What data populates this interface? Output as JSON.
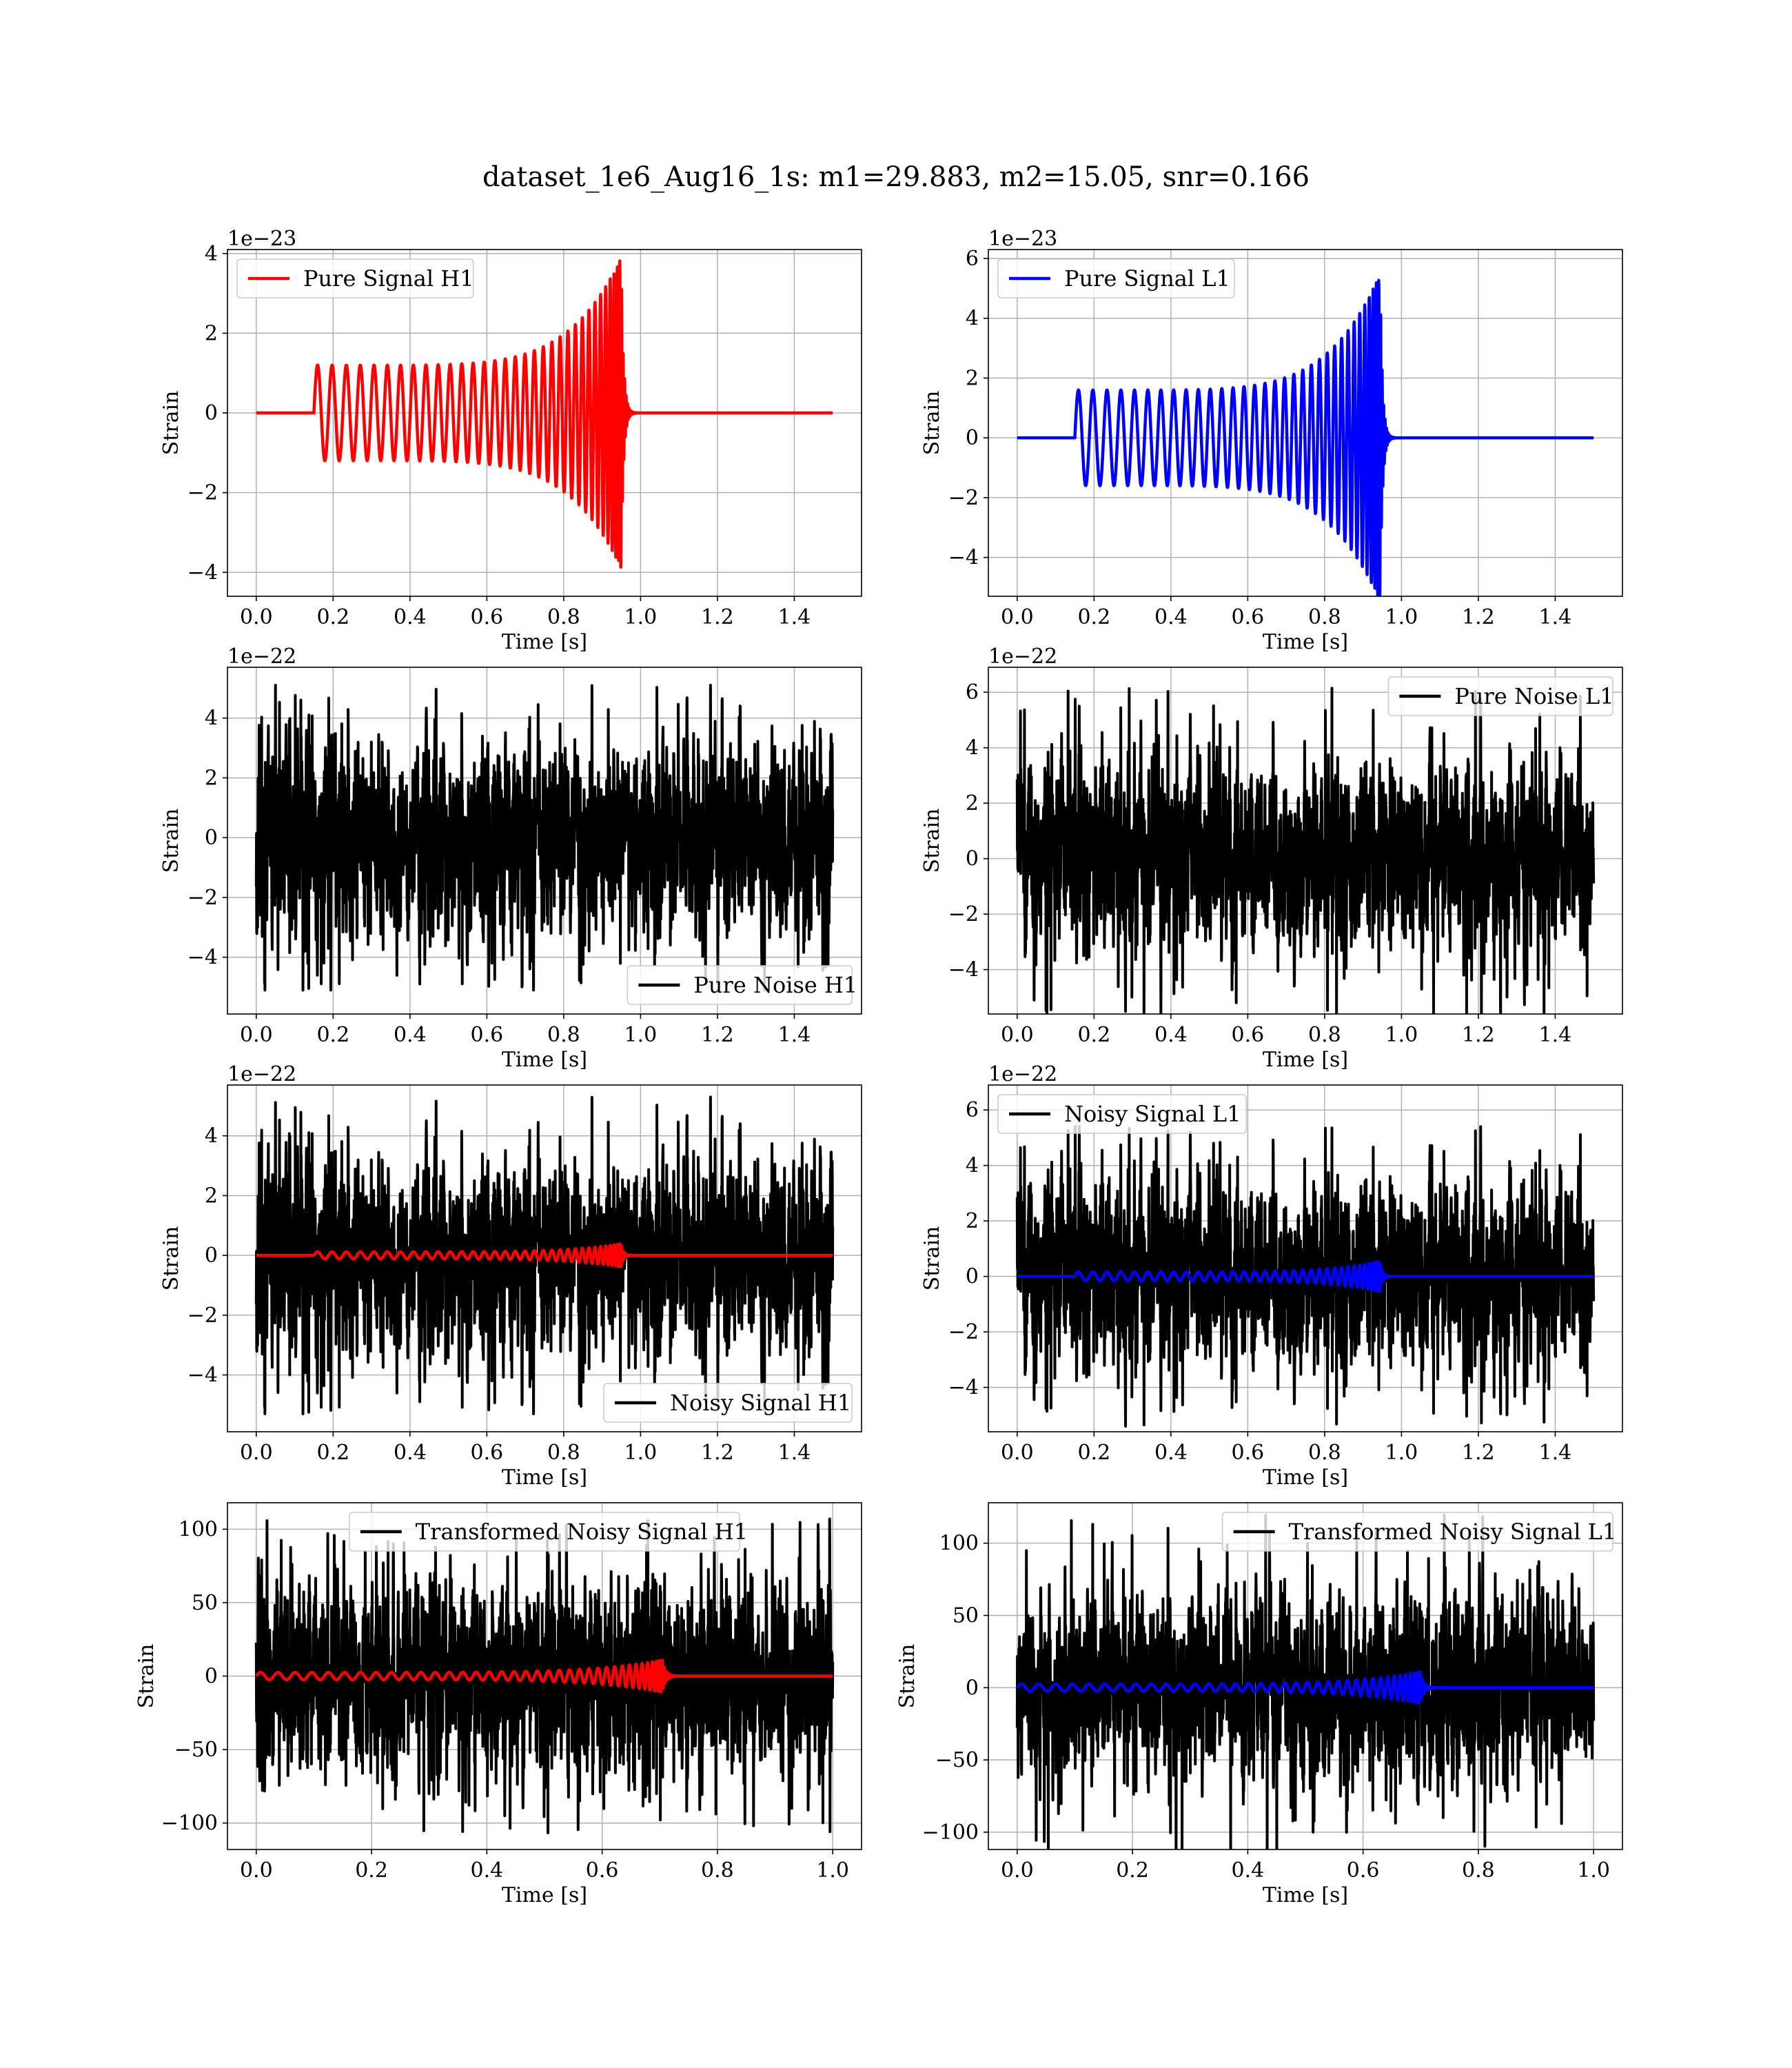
{
  "figure": {
    "suptitle": "dataset_1e6_Aug16_1s: m1=29.883, m2=15.05, snr=0.166"
  },
  "colors": {
    "H1_signal": "#ff0000",
    "L1_signal": "#0000ff",
    "noise": "#000000",
    "grid": "#b0b0b0"
  },
  "chart_data": [
    {
      "id": "pure_signal_h1",
      "type": "line",
      "xlabel": "Time [s]",
      "ylabel": "Strain",
      "offset_text": "1e−23",
      "xlim": [
        -0.075,
        1.575
      ],
      "ylim": [
        -4.6,
        4.1
      ],
      "xticks": [
        0.0,
        0.2,
        0.4,
        0.6,
        0.8,
        1.0,
        1.2,
        1.4
      ],
      "xtick_labels": [
        "0.0",
        "0.2",
        "0.4",
        "0.6",
        "0.8",
        "1.0",
        "1.2",
        "1.4"
      ],
      "yticks": [
        -4,
        -2,
        0,
        2,
        4
      ],
      "ytick_labels": [
        "−4",
        "−2",
        "0",
        "2",
        "4"
      ],
      "grid": true,
      "legend_position": "upper left",
      "legend": [
        "Pure Signal H1"
      ],
      "series": [
        {
          "name": "Pure Signal H1",
          "color": "#ff0000",
          "kind": "chirp",
          "t_start": 0.15,
          "t_merge": 0.95,
          "t_end": 1.5,
          "amp_start": 1.2,
          "amp_peak": 3.9,
          "cycles": 38
        }
      ]
    },
    {
      "id": "pure_signal_l1",
      "type": "line",
      "xlabel": "Time [s]",
      "ylabel": "Strain",
      "offset_text": "1e−23",
      "xlim": [
        -0.075,
        1.575
      ],
      "ylim": [
        -5.3,
        6.3
      ],
      "xticks": [
        0.0,
        0.2,
        0.4,
        0.6,
        0.8,
        1.0,
        1.2,
        1.4
      ],
      "xtick_labels": [
        "0.0",
        "0.2",
        "0.4",
        "0.6",
        "0.8",
        "1.0",
        "1.2",
        "1.4"
      ],
      "yticks": [
        -4,
        -2,
        0,
        2,
        4,
        6
      ],
      "ytick_labels": [
        "−4",
        "−2",
        "0",
        "2",
        "4",
        "6"
      ],
      "grid": true,
      "legend_position": "upper left",
      "legend": [
        "Pure Signal L1"
      ],
      "series": [
        {
          "name": "Pure Signal L1",
          "color": "#0000ff",
          "kind": "chirp",
          "t_start": 0.15,
          "t_merge": 0.945,
          "t_end": 1.5,
          "amp_start": 1.6,
          "amp_peak": 5.5,
          "cycles": 38
        }
      ]
    },
    {
      "id": "pure_noise_h1",
      "type": "line",
      "xlabel": "Time [s]",
      "ylabel": "Strain",
      "offset_text": "1e−22",
      "xlim": [
        -0.075,
        1.575
      ],
      "ylim": [
        -5.9,
        5.7
      ],
      "xticks": [
        0.0,
        0.2,
        0.4,
        0.6,
        0.8,
        1.0,
        1.2,
        1.4
      ],
      "xtick_labels": [
        "0.0",
        "0.2",
        "0.4",
        "0.6",
        "0.8",
        "1.0",
        "1.2",
        "1.4"
      ],
      "yticks": [
        -4,
        -2,
        0,
        2,
        4
      ],
      "ytick_labels": [
        "−4",
        "−2",
        "0",
        "2",
        "4"
      ],
      "grid": true,
      "legend_position": "lower right",
      "legend": [
        "Pure Noise H1"
      ],
      "series": [
        {
          "name": "Pure Noise H1",
          "color": "#000000",
          "kind": "noise",
          "t_start": 0.0,
          "t_end": 1.5,
          "amp": 1.6,
          "max_abs": 5.1,
          "seed": 11
        }
      ]
    },
    {
      "id": "pure_noise_l1",
      "type": "line",
      "xlabel": "Time [s]",
      "ylabel": "Strain",
      "offset_text": "1e−22",
      "xlim": [
        -0.075,
        1.575
      ],
      "ylim": [
        -5.6,
        6.9
      ],
      "xticks": [
        0.0,
        0.2,
        0.4,
        0.6,
        0.8,
        1.0,
        1.2,
        1.4
      ],
      "xtick_labels": [
        "0.0",
        "0.2",
        "0.4",
        "0.6",
        "0.8",
        "1.0",
        "1.2",
        "1.4"
      ],
      "yticks": [
        -4,
        -2,
        0,
        2,
        4,
        6
      ],
      "ytick_labels": [
        "−4",
        "−2",
        "0",
        "2",
        "4",
        "6"
      ],
      "grid": true,
      "legend_position": "upper right",
      "legend": [
        "Pure Noise L1"
      ],
      "series": [
        {
          "name": "Pure Noise L1",
          "color": "#000000",
          "kind": "noise",
          "t_start": 0.0,
          "t_end": 1.5,
          "amp": 1.6,
          "max_abs": 6.2,
          "seed": 23
        }
      ]
    },
    {
      "id": "noisy_signal_h1",
      "type": "line",
      "xlabel": "Time [s]",
      "ylabel": "Strain",
      "offset_text": "1e−22",
      "xlim": [
        -0.075,
        1.575
      ],
      "ylim": [
        -5.9,
        5.7
      ],
      "xticks": [
        0.0,
        0.2,
        0.4,
        0.6,
        0.8,
        1.0,
        1.2,
        1.4
      ],
      "xtick_labels": [
        "0.0",
        "0.2",
        "0.4",
        "0.6",
        "0.8",
        "1.0",
        "1.2",
        "1.4"
      ],
      "yticks": [
        -4,
        -2,
        0,
        2,
        4
      ],
      "ytick_labels": [
        "−4",
        "−2",
        "0",
        "2",
        "4"
      ],
      "grid": true,
      "legend_position": "lower right",
      "legend": [
        "Noisy Signal H1"
      ],
      "series": [
        {
          "name": "Noisy Signal H1",
          "color": "#000000",
          "kind": "noise",
          "t_start": 0.0,
          "t_end": 1.5,
          "amp": 1.6,
          "max_abs": 5.3,
          "seed": 11
        },
        {
          "color": "#ff0000",
          "kind": "chirp",
          "t_start": 0.15,
          "t_merge": 0.95,
          "t_end": 1.5,
          "amp_start": 0.12,
          "amp_peak": 0.39,
          "cycles": 38
        }
      ]
    },
    {
      "id": "noisy_signal_l1",
      "type": "line",
      "xlabel": "Time [s]",
      "ylabel": "Strain",
      "offset_text": "1e−22",
      "xlim": [
        -0.075,
        1.575
      ],
      "ylim": [
        -5.6,
        6.9
      ],
      "xticks": [
        0.0,
        0.2,
        0.4,
        0.6,
        0.8,
        1.0,
        1.2,
        1.4
      ],
      "xtick_labels": [
        "0.0",
        "0.2",
        "0.4",
        "0.6",
        "0.8",
        "1.0",
        "1.2",
        "1.4"
      ],
      "yticks": [
        -4,
        -2,
        0,
        2,
        4,
        6
      ],
      "ytick_labels": [
        "−4",
        "−2",
        "0",
        "2",
        "4",
        "6"
      ],
      "grid": true,
      "legend_position": "upper left",
      "legend": [
        "Noisy Signal L1"
      ],
      "series": [
        {
          "name": "Noisy Signal L1",
          "color": "#000000",
          "kind": "noise",
          "t_start": 0.0,
          "t_end": 1.5,
          "amp": 1.6,
          "max_abs": 5.4,
          "seed": 23
        },
        {
          "color": "#0000ff",
          "kind": "chirp",
          "t_start": 0.15,
          "t_merge": 0.945,
          "t_end": 1.5,
          "amp_start": 0.16,
          "amp_peak": 0.55,
          "cycles": 38
        }
      ]
    },
    {
      "id": "transformed_noisy_signal_h1",
      "type": "line",
      "xlabel": "Time [s]",
      "ylabel": "Strain",
      "offset_text": "",
      "xlim": [
        -0.05,
        1.05
      ],
      "ylim": [
        -118,
        118
      ],
      "xticks": [
        0.0,
        0.2,
        0.4,
        0.6,
        0.8,
        1.0
      ],
      "xtick_labels": [
        "0.0",
        "0.2",
        "0.4",
        "0.6",
        "0.8",
        "1.0"
      ],
      "yticks": [
        -100,
        -50,
        0,
        50,
        100
      ],
      "ytick_labels": [
        "−100",
        "−50",
        "0",
        "50",
        "100"
      ],
      "grid": true,
      "legend_position": "upper center",
      "legend": [
        "Transformed Noisy Signal H1"
      ],
      "series": [
        {
          "name": "Transformed Noisy Signal H1",
          "color": "#000000",
          "kind": "noise",
          "t_start": 0.0,
          "t_end": 1.0,
          "amp": 32,
          "max_abs": 107,
          "seed": 47
        },
        {
          "color": "#ff0000",
          "kind": "chirp",
          "t_start": 0.0,
          "t_merge": 0.705,
          "t_end": 1.0,
          "amp_start": 2.5,
          "amp_peak": 11,
          "cycles": 42
        }
      ]
    },
    {
      "id": "transformed_noisy_signal_l1",
      "type": "line",
      "xlabel": "Time [s]",
      "ylabel": "Strain",
      "offset_text": "",
      "xlim": [
        -0.05,
        1.05
      ],
      "ylim": [
        -112,
        128
      ],
      "xticks": [
        0.0,
        0.2,
        0.4,
        0.6,
        0.8,
        1.0
      ],
      "xtick_labels": [
        "0.0",
        "0.2",
        "0.4",
        "0.6",
        "0.8",
        "1.0"
      ],
      "yticks": [
        -100,
        -50,
        0,
        50,
        100
      ],
      "ytick_labels": [
        "−100",
        "−50",
        "0",
        "50",
        "100"
      ],
      "grid": true,
      "legend_position": "upper right",
      "legend": [
        "Transformed Noisy Signal L1"
      ],
      "series": [
        {
          "name": "Transformed Noisy Signal L1",
          "color": "#000000",
          "kind": "noise",
          "t_start": 0.0,
          "t_end": 1.0,
          "amp": 30,
          "max_abs": 120,
          "seed": 59
        },
        {
          "color": "#0000ff",
          "kind": "chirp",
          "t_start": 0.0,
          "t_merge": 0.7,
          "t_end": 1.0,
          "amp_start": 2.5,
          "amp_peak": 11,
          "cycles": 42
        }
      ]
    }
  ]
}
